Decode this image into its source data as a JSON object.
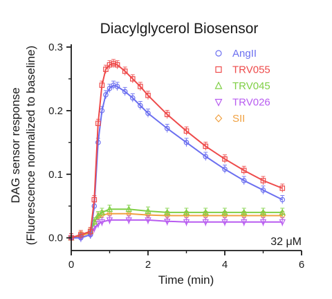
{
  "chart_data": {
    "type": "scatter",
    "title": "Diacylglycerol Biosensor",
    "xlabel": "Time (min)",
    "ylabel": "DAG sensor response",
    "ylabel2": "(Fluorescence normalized to baseline)",
    "xlim": [
      0,
      6
    ],
    "ylim": [
      -0.02,
      0.3
    ],
    "xticks": [
      "0",
      "2",
      "4",
      "6"
    ],
    "yticks": [
      "0.0",
      "0.1",
      "0.2",
      "0.3"
    ],
    "annotation": "32 μM",
    "grid": false,
    "legend_position": "top-right",
    "series": [
      {
        "name": "AngII",
        "color": "#6b6ff0",
        "marker": "circle",
        "x": [
          0.0,
          0.25,
          0.5,
          0.6,
          0.7,
          0.8,
          0.9,
          1.0,
          1.1,
          1.2,
          1.4,
          1.6,
          1.8,
          2.0,
          2.5,
          3.0,
          3.5,
          4.0,
          4.5,
          5.0,
          5.5
        ],
        "y": [
          0.0,
          0.0,
          0.005,
          0.05,
          0.15,
          0.2,
          0.225,
          0.235,
          0.24,
          0.238,
          0.23,
          0.22,
          0.208,
          0.196,
          0.172,
          0.15,
          0.128,
          0.108,
          0.09,
          0.075,
          0.06
        ]
      },
      {
        "name": "TRV055",
        "color": "#ee4a4a",
        "marker": "square",
        "x": [
          0.0,
          0.25,
          0.5,
          0.6,
          0.7,
          0.8,
          0.9,
          1.0,
          1.1,
          1.2,
          1.4,
          1.6,
          1.8,
          2.0,
          2.5,
          3.0,
          3.5,
          4.0,
          4.5,
          5.0,
          5.5
        ],
        "y": [
          0.0,
          0.005,
          0.01,
          0.06,
          0.18,
          0.24,
          0.265,
          0.272,
          0.274,
          0.272,
          0.262,
          0.25,
          0.238,
          0.224,
          0.194,
          0.168,
          0.144,
          0.124,
          0.106,
          0.09,
          0.078
        ]
      },
      {
        "name": "TRV045",
        "color": "#7fcf45",
        "marker": "triangle-up",
        "x": [
          0.0,
          0.25,
          0.5,
          0.6,
          0.7,
          0.8,
          1.0,
          1.5,
          2.0,
          2.5,
          3.0,
          3.5,
          4.0,
          4.5,
          5.0,
          5.5
        ],
        "y": [
          0.0,
          0.005,
          0.01,
          0.025,
          0.035,
          0.04,
          0.045,
          0.045,
          0.042,
          0.04,
          0.04,
          0.04,
          0.04,
          0.04,
          0.04,
          0.04
        ]
      },
      {
        "name": "TRV026",
        "color": "#b85cf0",
        "marker": "triangle-down",
        "x": [
          0.0,
          0.25,
          0.5,
          0.6,
          0.7,
          0.8,
          1.0,
          1.5,
          2.0,
          2.5,
          3.0,
          3.5,
          4.0,
          4.5,
          5.0,
          5.5
        ],
        "y": [
          0.0,
          0.0,
          0.005,
          0.015,
          0.022,
          0.025,
          0.028,
          0.028,
          0.028,
          0.026,
          0.025,
          0.025,
          0.025,
          0.025,
          0.025,
          0.025
        ]
      },
      {
        "name": "SII",
        "color": "#f0a040",
        "marker": "diamond",
        "x": [
          0.0,
          0.25,
          0.5,
          0.6,
          0.7,
          0.8,
          1.0,
          1.5,
          2.0,
          2.5,
          3.0,
          3.5,
          4.0,
          4.5,
          5.0,
          5.5
        ],
        "y": [
          0.0,
          0.003,
          0.008,
          0.025,
          0.033,
          0.036,
          0.038,
          0.038,
          0.036,
          0.035,
          0.035,
          0.035,
          0.035,
          0.035,
          0.035,
          0.035
        ]
      }
    ]
  }
}
